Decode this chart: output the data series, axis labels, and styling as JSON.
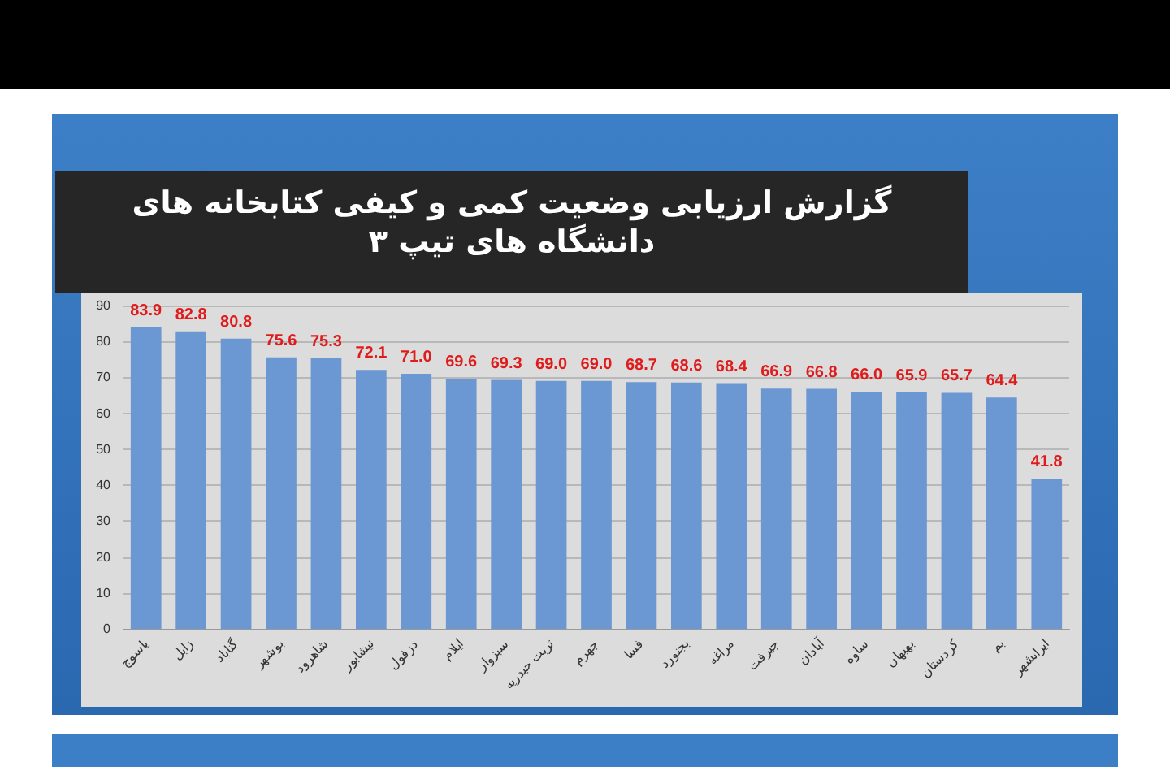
{
  "chart_data": {
    "type": "bar",
    "title": "گزارش ارزیابی وضعیت کمی و کیفی کتابخانه های دانشگاه های تیپ ۳",
    "categories": [
      "یاسوج",
      "زابل",
      "گناباد",
      "بوشهر",
      "شاهرود",
      "نیشابور",
      "دزفول",
      "ایلام",
      "سبزوار",
      "تربت حیدریه",
      "جهرم",
      "فسا",
      "بجنورد",
      "مراغه",
      "جیرفت",
      "آبادان",
      "ساوه",
      "بهبهان",
      "کردستان",
      "بم",
      "ایرانشهر"
    ],
    "values": [
      83.9,
      82.8,
      80.8,
      75.6,
      75.3,
      72.1,
      71.0,
      69.6,
      69.3,
      69.0,
      69.0,
      68.7,
      68.6,
      68.4,
      66.9,
      66.8,
      66.0,
      65.9,
      65.7,
      64.4,
      41.8
    ],
    "value_labels": [
      "83.9",
      "82.8",
      "80.8",
      "75.6",
      "75.3",
      "72.1",
      "71.0",
      "69.6",
      "69.3",
      "69.0",
      "69.0",
      "68.7",
      "68.6",
      "68.4",
      "66.9",
      "66.8",
      "66.0",
      "65.9",
      "65.7",
      "64.4",
      "41.8"
    ],
    "color": "#6b97d3",
    "ylim": [
      0,
      90
    ],
    "yticks": [
      0,
      10,
      20,
      30,
      40,
      50,
      60,
      70,
      80,
      90
    ],
    "grid": "y"
  }
}
